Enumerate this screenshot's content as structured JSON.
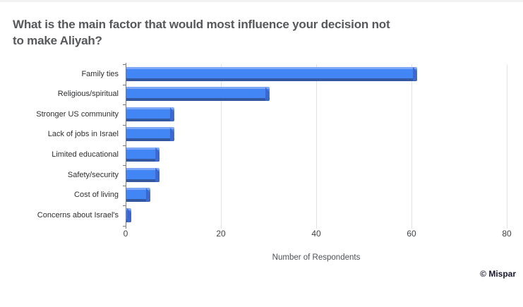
{
  "header": {
    "title_lines": [
      "What is the main factor that would most influence your decision not",
      "to make Aliyah?"
    ]
  },
  "chart_data": {
    "type": "bar",
    "orientation": "horizontal",
    "title": "What is the main factor that would most influence your decision not to make Aliyah?",
    "categories": [
      "Family ties",
      "Religious/spiritual",
      "Stronger US community",
      "Lack of jobs in Israel",
      "Limited educational",
      "Safety/security",
      "Cost of living",
      "Concerns about Israel's"
    ],
    "values": [
      61,
      30,
      10,
      10,
      7,
      7,
      5,
      1
    ],
    "xlabel": "Number of Respondents",
    "xticks": [
      0,
      20,
      40,
      60,
      80
    ],
    "xlim": [
      0,
      80
    ],
    "grid": true,
    "legend_position": "none",
    "bar_colors": {
      "face": "#4285f4",
      "top_highlight": "#7ea7f8",
      "bottom_shadow": "#33589f",
      "end_cap": "#3a68d0"
    }
  },
  "footer": {
    "attribution": "© Mispar"
  },
  "colors": {
    "background": "#ffffff",
    "title": "#56585b",
    "category_label": "#2d2e30",
    "tick_label": "#404346",
    "axis_label": "#4d5156",
    "gridline": "#e2e2e2",
    "axis_line": "#7a7a7a",
    "attribution": "#17172f"
  }
}
